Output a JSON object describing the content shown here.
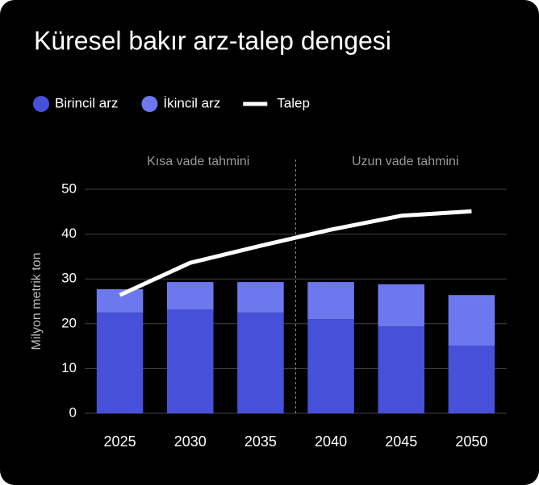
{
  "chart_data": {
    "type": "bar",
    "title": "Küresel bakır arz-talep dengesi",
    "y_label": "Milyon metrik ton",
    "annotations": [
      "Kısa vade tahmini",
      "Uzun vade tahmini"
    ],
    "categories": [
      "2025",
      "2030",
      "2035",
      "2040",
      "2045",
      "2050"
    ],
    "series": [
      {
        "name": "Birincil arz",
        "color": "#4650d8",
        "type": "bar",
        "values": [
          22.5,
          23.2,
          22.5,
          21.0,
          19.4,
          15.1
        ]
      },
      {
        "name": "İkincil arz",
        "color": "#6d78ee",
        "type": "bar",
        "values": [
          5.2,
          6.1,
          6.8,
          8.3,
          9.4,
          11.3
        ]
      },
      {
        "name": "Talep",
        "color": "#ffffff",
        "type": "line",
        "values": [
          26.4,
          33.6,
          37.4,
          41.0,
          44.1,
          45.1
        ]
      }
    ],
    "ylim": [
      0,
      50
    ],
    "yticks": [
      0,
      10,
      20,
      30,
      40,
      50
    ],
    "grid": true
  }
}
